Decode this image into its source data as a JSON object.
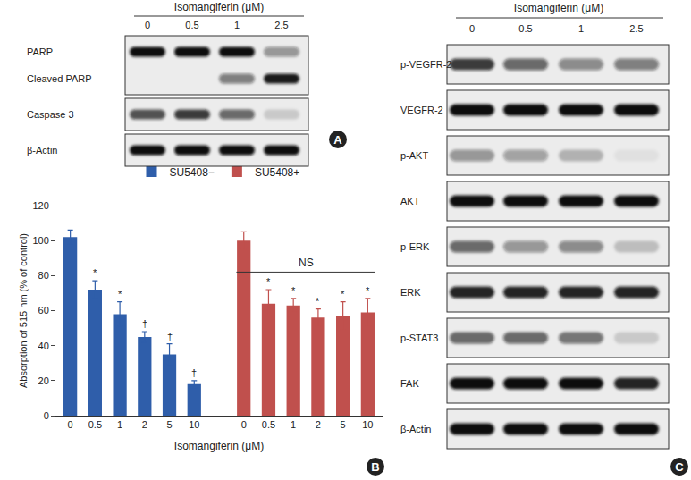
{
  "chart_data": {
    "type": "bar",
    "panel_label": "B",
    "x_label": "Isomangiferin (μM)",
    "y_label": "Absorption of 515 nm (% of control)",
    "categories": [
      "0",
      "0.5",
      "1",
      "2",
      "5",
      "10",
      null,
      "0",
      "0.5",
      "1",
      "2",
      "5",
      "10"
    ],
    "series": [
      {
        "name": "SU5408−",
        "color": "#2f5eaa",
        "values": [
          102,
          72,
          58,
          45,
          35,
          18,
          null,
          null,
          null,
          null,
          null,
          null,
          null
        ],
        "errors": [
          4,
          5,
          7,
          3,
          6,
          2,
          null,
          null,
          null,
          null,
          null,
          null,
          null
        ]
      },
      {
        "name": "SU5408+",
        "color": "#c0504d",
        "values": [
          null,
          null,
          null,
          null,
          null,
          null,
          null,
          100,
          64,
          63,
          56,
          57,
          59
        ],
        "errors": [
          null,
          null,
          null,
          null,
          null,
          null,
          null,
          5,
          8,
          4,
          5,
          8,
          8
        ]
      }
    ],
    "annotations": [
      {
        "text": "*",
        "index": 1
      },
      {
        "text": "*",
        "index": 2
      },
      {
        "text": "†",
        "index": 3
      },
      {
        "text": "†",
        "index": 4
      },
      {
        "text": "†",
        "index": 5
      },
      {
        "text": "*",
        "index": 8
      },
      {
        "text": "*",
        "index": 9
      },
      {
        "text": "*",
        "index": 10
      },
      {
        "text": "*",
        "index": 11
      },
      {
        "text": "*",
        "index": 12
      }
    ],
    "bracket": {
      "text": "NS",
      "from": 7,
      "to": 12,
      "y": 82
    },
    "ylim": [
      0,
      120
    ],
    "yticks": [
      0,
      20,
      40,
      60,
      80,
      100,
      120
    ],
    "grid": false,
    "legend": "top"
  },
  "blot_a": {
    "panel_label": "A",
    "header": "Isomangiferin (μM)",
    "lanes": [
      "0",
      "0.5",
      "1",
      "2.5"
    ],
    "boxes": [
      [
        {
          "label": "PARP",
          "bands": [
            1,
            1,
            1,
            0.4
          ]
        },
        {
          "label": "Cleaved PARP",
          "bands": [
            0,
            0,
            0.5,
            0.95
          ]
        }
      ],
      [
        {
          "label": "Caspase 3",
          "bands": [
            0.7,
            0.8,
            0.6,
            0.15
          ]
        }
      ],
      [
        {
          "label": "β-Actin",
          "bands": [
            1,
            1,
            1,
            1
          ]
        }
      ]
    ]
  },
  "blot_c": {
    "panel_label": "C",
    "header": "Isomangiferin (μM)",
    "lanes": [
      "0",
      "0.5",
      "1",
      "2.5"
    ],
    "boxes": [
      [
        {
          "label": "p-VEGFR-2",
          "bands": [
            0.8,
            0.6,
            0.45,
            0.5
          ]
        }
      ],
      [
        {
          "label": "VEGFR-2",
          "bands": [
            1,
            1,
            1,
            1
          ]
        }
      ],
      [
        {
          "label": "p-AKT",
          "bands": [
            0.4,
            0.35,
            0.25,
            0.05
          ]
        }
      ],
      [
        {
          "label": "AKT",
          "bands": [
            1,
            1,
            1,
            1
          ]
        }
      ],
      [
        {
          "label": "p-ERK",
          "bands": [
            0.6,
            0.4,
            0.45,
            0.2
          ]
        }
      ],
      [
        {
          "label": "ERK",
          "bands": [
            0.9,
            0.9,
            0.9,
            0.9
          ]
        }
      ],
      [
        {
          "label": "p-STAT3",
          "bands": [
            0.6,
            0.6,
            0.55,
            0.15
          ]
        }
      ],
      [
        {
          "label": "FAK",
          "bands": [
            1,
            1,
            1,
            0.9
          ]
        }
      ],
      [
        {
          "label": "β-Actin",
          "bands": [
            1,
            1,
            1,
            1
          ]
        }
      ]
    ]
  }
}
